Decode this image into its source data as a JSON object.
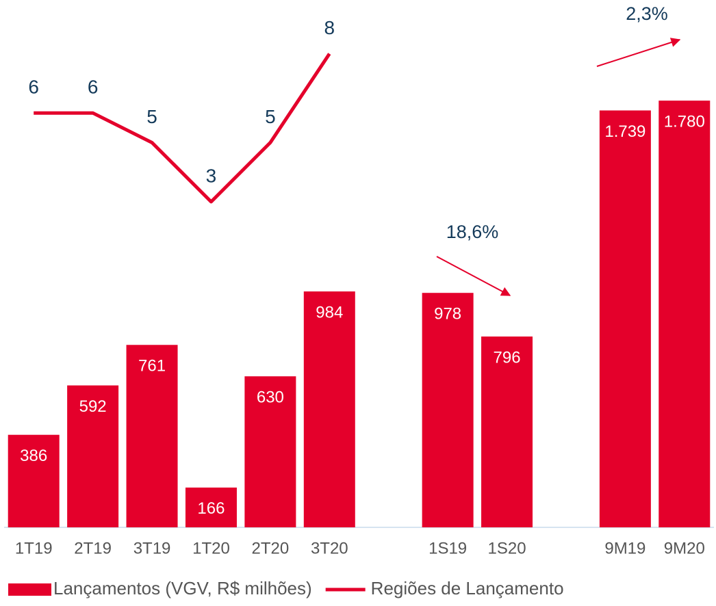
{
  "chart_data": {
    "type": "bar",
    "categories": [
      "1T19",
      "2T19",
      "3T19",
      "1T20",
      "2T20",
      "3T20",
      null,
      "1S19",
      "1S20",
      null,
      "9M19",
      "9M20"
    ],
    "series": [
      {
        "name": "Lançamentos (VGV, R$ milhões)",
        "type": "bar",
        "color": "#e4002b",
        "values": [
          386,
          592,
          761,
          166,
          630,
          984,
          null,
          978,
          796,
          null,
          1739,
          1780
        ],
        "value_labels": [
          "386",
          "592",
          "761",
          "166",
          "630",
          "984",
          null,
          "978",
          "796",
          null,
          "1.739",
          "1.780"
        ]
      },
      {
        "name": "Regiões de Lançamento",
        "type": "line",
        "color": "#e4002b",
        "axis": "y2",
        "values": [
          6,
          6,
          5,
          3,
          5,
          8,
          null,
          null,
          null,
          null,
          null,
          null
        ]
      }
    ],
    "annotations": [
      "18,6%",
      "2,3%"
    ],
    "ylim": [
      0,
      2000
    ],
    "y2lim": [
      -8,
      8.2
    ]
  }
}
